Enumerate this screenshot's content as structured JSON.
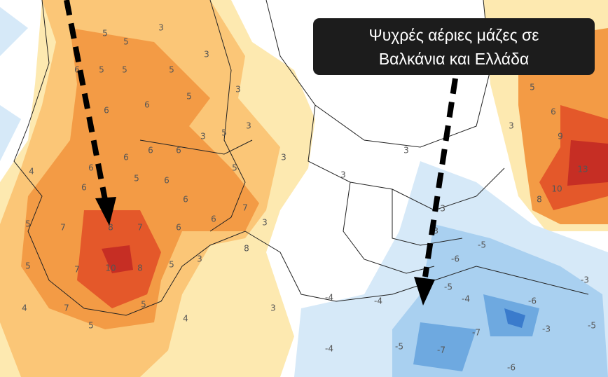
{
  "caption": {
    "line1": "Ψυχρές αέριες μάζες σε",
    "line2": "Βαλκάνια και Ελλάδα"
  },
  "map": {
    "labels": [
      "3",
      "5",
      "5",
      "6",
      "5",
      "5",
      "5",
      "3",
      "3",
      "5",
      "6",
      "6",
      "3",
      "5",
      "3",
      "6",
      "6",
      "6",
      "6",
      "4",
      "3",
      "5",
      "6",
      "5",
      "6",
      "6",
      "7",
      "6",
      "5",
      "7",
      "8",
      "7",
      "6",
      "8",
      "3",
      "3",
      "5",
      "7",
      "10",
      "8",
      "5",
      "4",
      "7",
      "5",
      "4",
      "3",
      "5",
      "3",
      "3",
      "-3",
      "3",
      "5",
      "6",
      "9",
      "13",
      "10",
      "8",
      "-5",
      "-6",
      "-3",
      "-5",
      "-4",
      "-4",
      "-4",
      "-4",
      "-5",
      "-7",
      "-7",
      "-6",
      "-3",
      "-5",
      "-6",
      "-3"
    ]
  }
}
